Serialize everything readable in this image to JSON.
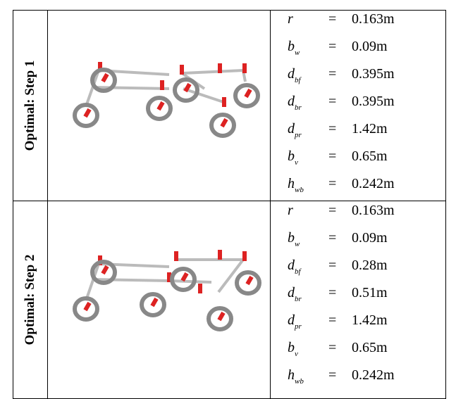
{
  "table": {
    "rows": [
      {
        "label": "Optimal: Step 1",
        "params": [
          {
            "symbol": "r",
            "sub": null,
            "relation": "=",
            "value": "0.163m"
          },
          {
            "symbol": "b",
            "sub": "w",
            "relation": "=",
            "value": "0.09m"
          },
          {
            "symbol": "d",
            "sub": "bf",
            "relation": "=",
            "value": "0.395m"
          },
          {
            "symbol": "d",
            "sub": "br",
            "relation": "=",
            "value": "0.395m"
          },
          {
            "symbol": "d",
            "sub": "pr",
            "relation": "=",
            "value": "1.42m"
          },
          {
            "symbol": "b",
            "sub": "v",
            "relation": "=",
            "value": "0.65m"
          },
          {
            "symbol": "h",
            "sub": "wb",
            "relation": "=",
            "value": "0.242m"
          }
        ]
      },
      {
        "label": "Optimal: Step 2",
        "params": [
          {
            "symbol": "r",
            "sub": null,
            "relation": "=",
            "value": "0.163m"
          },
          {
            "symbol": "b",
            "sub": "w",
            "relation": "=",
            "value": "0.09m"
          },
          {
            "symbol": "d",
            "sub": "bf",
            "relation": "=",
            "value": "0.28m"
          },
          {
            "symbol": "d",
            "sub": "br",
            "relation": "=",
            "value": "0.51m"
          },
          {
            "symbol": "d",
            "sub": "pr",
            "relation": "=",
            "value": "1.42m"
          },
          {
            "symbol": "b",
            "sub": "v",
            "relation": "=",
            "value": "0.65m"
          },
          {
            "symbol": "h",
            "sub": "wb",
            "relation": "=",
            "value": "0.242m"
          }
        ]
      }
    ]
  }
}
